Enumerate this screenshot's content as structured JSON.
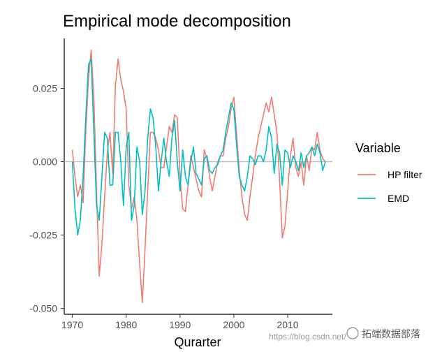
{
  "chart_data": {
    "type": "line",
    "title": "Empirical mode decomposition",
    "xlabel": "Qurarter",
    "ylabel": "",
    "xlim": [
      1968.5,
      2018.3
    ],
    "ylim": [
      -0.052,
      0.042
    ],
    "xticks": [
      1970,
      1980,
      1990,
      2000,
      2010
    ],
    "yticks": [
      0.025,
      0.0,
      -0.025,
      -0.05
    ],
    "ytick_labels": [
      "0.025",
      "0.000",
      "-0.025",
      "-0.050"
    ],
    "xtick_labels": [
      "1970",
      "1980",
      "1990",
      "2000",
      "2010"
    ],
    "reference_line": 0.0,
    "grid": false,
    "legend": {
      "title": "Variable",
      "position": "right",
      "entries": [
        "HP filter",
        "EMD"
      ]
    },
    "series": [
      {
        "name": "HP filter",
        "color": "#f07c73",
        "x": [
          1970.0,
          1970.5,
          1971.0,
          1971.5,
          1972.0,
          1972.5,
          1973.0,
          1973.5,
          1974.0,
          1974.5,
          1975.0,
          1975.5,
          1976.0,
          1976.5,
          1977.0,
          1977.5,
          1978.0,
          1978.5,
          1979.0,
          1979.5,
          1980.0,
          1980.5,
          1981.0,
          1981.5,
          1982.0,
          1982.5,
          1983.0,
          1983.5,
          1984.0,
          1984.5,
          1985.0,
          1985.5,
          1986.0,
          1986.5,
          1987.0,
          1987.5,
          1988.0,
          1988.5,
          1989.0,
          1989.5,
          1990.0,
          1990.5,
          1991.0,
          1991.5,
          1992.0,
          1992.5,
          1993.0,
          1993.5,
          1994.0,
          1994.5,
          1995.0,
          1995.5,
          1996.0,
          1996.5,
          1997.0,
          1997.5,
          1998.0,
          1998.5,
          1999.0,
          1999.5,
          2000.0,
          2000.5,
          2001.0,
          2001.5,
          2002.0,
          2002.5,
          2003.0,
          2003.5,
          2004.0,
          2004.5,
          2005.0,
          2005.5,
          2006.0,
          2006.5,
          2007.0,
          2007.5,
          2008.0,
          2008.5,
          2009.0,
          2009.5,
          2010.0,
          2010.5,
          2011.0,
          2011.5,
          2012.0,
          2012.5,
          2013.0,
          2013.5,
          2014.0,
          2014.5,
          2015.0,
          2015.5,
          2016.0,
          2016.5,
          2017.0
        ],
        "y": [
          0.004,
          -0.005,
          -0.012,
          -0.008,
          -0.014,
          0.01,
          0.028,
          0.038,
          0.022,
          -0.01,
          -0.039,
          -0.028,
          -0.012,
          0.003,
          0.01,
          -0.004,
          0.026,
          0.035,
          0.028,
          0.024,
          0.018,
          -0.008,
          -0.016,
          -0.012,
          -0.02,
          -0.035,
          -0.048,
          -0.03,
          -0.01,
          0.01,
          0.01,
          0.008,
          0.004,
          -0.002,
          -0.002,
          0.005,
          0.012,
          0.01,
          0.016,
          0.015,
          -0.005,
          -0.016,
          -0.017,
          -0.008,
          0.002,
          -0.002,
          -0.006,
          -0.01,
          -0.012,
          0.004,
          0.001,
          -0.005,
          -0.01,
          -0.005,
          0.0,
          0.002,
          0.002,
          0.008,
          0.012,
          0.018,
          0.022,
          0.01,
          -0.003,
          -0.012,
          -0.018,
          -0.02,
          -0.012,
          -0.005,
          0.002,
          0.008,
          0.012,
          0.016,
          0.02,
          0.017,
          0.022,
          0.016,
          0.01,
          -0.006,
          -0.026,
          -0.022,
          -0.01,
          0.002,
          0.008,
          -0.002,
          -0.005,
          0.0,
          -0.008,
          0.002,
          -0.003,
          0.005,
          0.004,
          0.01,
          0.004,
          0.001,
          0.0
        ]
      },
      {
        "name": "EMD",
        "color": "#00bfc4",
        "x": [
          1970.0,
          1970.5,
          1971.0,
          1971.5,
          1972.0,
          1972.5,
          1973.0,
          1973.5,
          1974.0,
          1974.5,
          1975.0,
          1975.5,
          1976.0,
          1976.5,
          1977.0,
          1977.5,
          1978.0,
          1978.5,
          1979.0,
          1979.5,
          1980.0,
          1980.5,
          1981.0,
          1981.5,
          1982.0,
          1982.5,
          1983.0,
          1983.5,
          1984.0,
          1984.5,
          1985.0,
          1985.5,
          1986.0,
          1986.5,
          1987.0,
          1987.5,
          1988.0,
          1988.5,
          1989.0,
          1989.5,
          1990.0,
          1990.5,
          1991.0,
          1991.5,
          1992.0,
          1992.5,
          1993.0,
          1993.5,
          1994.0,
          1994.5,
          1995.0,
          1995.5,
          1996.0,
          1996.5,
          1997.0,
          1997.5,
          1998.0,
          1998.5,
          1999.0,
          1999.5,
          2000.0,
          2000.5,
          2001.0,
          2001.5,
          2002.0,
          2002.5,
          2003.0,
          2003.5,
          2004.0,
          2004.5,
          2005.0,
          2005.5,
          2006.0,
          2006.5,
          2007.0,
          2007.5,
          2008.0,
          2008.5,
          2009.0,
          2009.5,
          2010.0,
          2010.5,
          2011.0,
          2011.5,
          2012.0,
          2012.5,
          2013.0,
          2013.5,
          2014.0,
          2014.5,
          2015.0,
          2015.5,
          2016.0,
          2016.5,
          2017.0
        ],
        "y": [
          0.0,
          -0.016,
          -0.025,
          -0.02,
          -0.005,
          0.015,
          0.033,
          0.035,
          0.01,
          -0.015,
          -0.02,
          -0.005,
          0.01,
          0.008,
          -0.008,
          -0.008,
          0.01,
          0.01,
          0.0,
          -0.015,
          0.005,
          0.01,
          -0.02,
          -0.015,
          0.005,
          0.0,
          -0.018,
          -0.01,
          0.008,
          0.018,
          0.015,
          0.005,
          -0.01,
          0.0,
          0.008,
          0.0,
          -0.005,
          0.008,
          0.014,
          0.0,
          -0.01,
          0.004,
          -0.005,
          -0.008,
          0.0,
          0.005,
          -0.004,
          -0.006,
          -0.008,
          0.001,
          0.002,
          -0.003,
          -0.004,
          -0.002,
          -0.001,
          0.002,
          0.004,
          0.01,
          0.015,
          0.02,
          0.018,
          0.006,
          -0.005,
          -0.008,
          -0.01,
          -0.005,
          0.002,
          0.001,
          -0.001,
          0.002,
          0.002,
          0.0,
          0.004,
          0.012,
          0.008,
          -0.004,
          0.006,
          0.003,
          -0.008,
          0.004,
          0.003,
          -0.002,
          0.002,
          0.0,
          -0.003,
          0.003,
          -0.002,
          0.002,
          0.003,
          0.005,
          0.002,
          0.006,
          0.003,
          -0.003,
          0.0
        ]
      }
    ]
  },
  "watermark": {
    "url_text": "https://blog.csdn.net/",
    "brand_text": "拓端数据部落"
  }
}
